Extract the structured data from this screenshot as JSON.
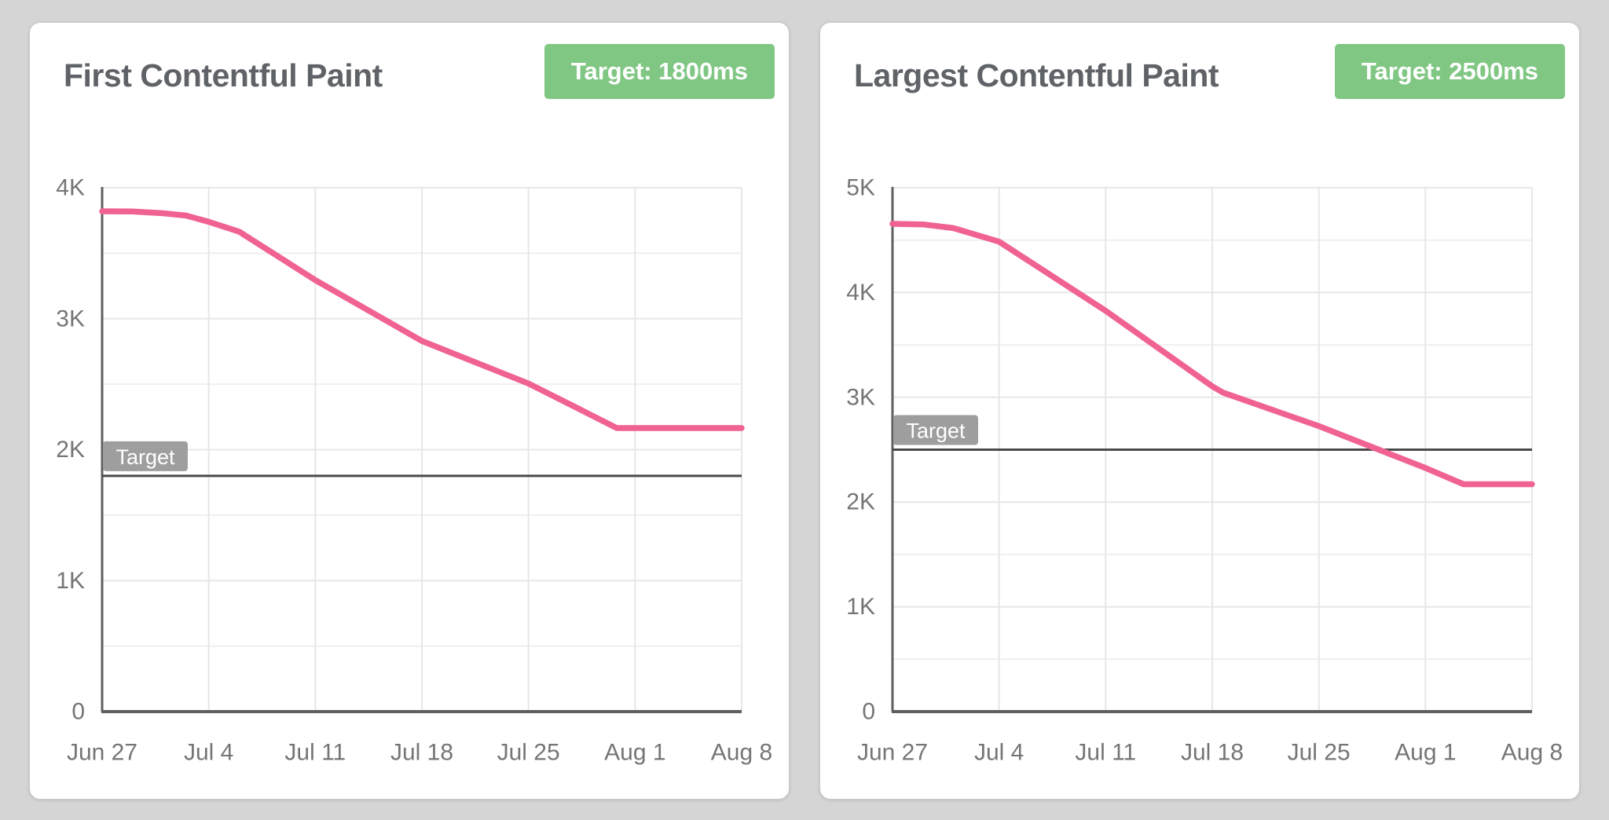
{
  "colors": {
    "page_background": "#d5d5d5",
    "card_background": "#ffffff",
    "title_text": "#5f6368",
    "badge_green": "#81c784",
    "badge_text": "#ffffff",
    "axis_line": "#5f5f5f",
    "tick_label": "#757575",
    "gridline_major": "#e7e7e7",
    "gridline_minor": "#efefef",
    "target_line": "#4a4a4a",
    "target_tag_background": "#9e9e9e",
    "target_tag_text": "#ffffff",
    "series_pink": "#f06292"
  },
  "chart_data": [
    {
      "type": "line",
      "title": "First Contentful Paint",
      "badge": "Target: 1800ms",
      "unit": "ms",
      "target_line": {
        "label": "Target",
        "value": 1800
      },
      "x_tick_labels": [
        "Jun 27",
        "Jul 4",
        "Jul 11",
        "Jul 18",
        "Jul 25",
        "Aug 1",
        "Aug 8"
      ],
      "x_range_days": 42,
      "x_tick_step_days": 7,
      "ylim": [
        0,
        4000
      ],
      "y_tick_labels": [
        "0",
        "1K",
        "2K",
        "3K",
        "4K"
      ],
      "y_major_step": 1000,
      "y_minor_step": 500,
      "grid": true,
      "legend": "none",
      "series": [
        {
          "color": "#f06292",
          "points_day_ms": [
            [
              0,
              3820
            ],
            [
              2,
              3818
            ],
            [
              4,
              3805
            ],
            [
              5.5,
              3788
            ],
            [
              7,
              3740
            ],
            [
              9,
              3665
            ],
            [
              14,
              3295
            ],
            [
              21,
              2830
            ],
            [
              28,
              2505
            ],
            [
              31,
              2330
            ],
            [
              33.8,
              2165
            ],
            [
              42,
              2165
            ]
          ]
        }
      ]
    },
    {
      "type": "line",
      "title": "Largest Contentful Paint",
      "badge": "Target: 2500ms",
      "unit": "ms",
      "target_line": {
        "label": "Target",
        "value": 2500
      },
      "x_tick_labels": [
        "Jun 27",
        "Jul 4",
        "Jul 11",
        "Jul 18",
        "Jul 25",
        "Aug 1",
        "Aug 8"
      ],
      "x_range_days": 42,
      "x_tick_step_days": 7,
      "ylim": [
        0,
        5000
      ],
      "y_tick_labels": [
        "0",
        "1K",
        "2K",
        "3K",
        "4K",
        "5K"
      ],
      "y_major_step": 1000,
      "y_minor_step": 500,
      "grid": true,
      "legend": "none",
      "series": [
        {
          "color": "#f06292",
          "points_day_ms": [
            [
              0,
              4655
            ],
            [
              2,
              4650
            ],
            [
              4,
              4615
            ],
            [
              7,
              4485
            ],
            [
              14,
              3825
            ],
            [
              21,
              3105
            ],
            [
              21.7,
              3045
            ],
            [
              28,
              2725
            ],
            [
              35,
              2325
            ],
            [
              37.5,
              2170
            ],
            [
              42,
              2170
            ]
          ]
        }
      ]
    }
  ]
}
